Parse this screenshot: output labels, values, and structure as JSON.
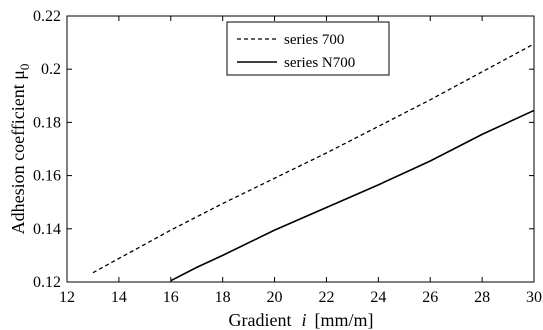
{
  "chart_data": {
    "type": "line",
    "xlabel": "Gradient",
    "xlabel_var": "i",
    "xlabel_unit": "[mm/m]",
    "ylabel": "Adhesion coefficient μ",
    "ylabel_sub": "0",
    "xlim": [
      12,
      30
    ],
    "ylim": [
      0.12,
      0.22
    ],
    "xticks": [
      12,
      14,
      16,
      18,
      20,
      22,
      24,
      26,
      28,
      30
    ],
    "yticks": [
      0.12,
      0.14,
      0.16,
      0.18,
      0.2,
      0.22
    ],
    "ytick_labels": [
      "0.12",
      "0.14",
      "0.16",
      "0.18",
      "0.2",
      "0.22"
    ],
    "grid": false,
    "legend_position": "top-center",
    "series": [
      {
        "name": "series 700",
        "style": "dashed",
        "color": "#000000",
        "x": [
          13,
          16,
          18,
          20,
          22,
          24,
          26,
          28,
          30
        ],
        "y": [
          0.1235,
          0.1395,
          0.1495,
          0.159,
          0.1685,
          0.1785,
          0.1885,
          0.199,
          0.2095
        ]
      },
      {
        "name": "series N700",
        "style": "solid",
        "color": "#000000",
        "x": [
          16,
          17,
          18,
          20,
          22,
          24,
          26,
          28,
          30
        ],
        "y": [
          0.1205,
          0.1255,
          0.13,
          0.1395,
          0.148,
          0.1565,
          0.1655,
          0.1755,
          0.1845
        ]
      }
    ]
  }
}
